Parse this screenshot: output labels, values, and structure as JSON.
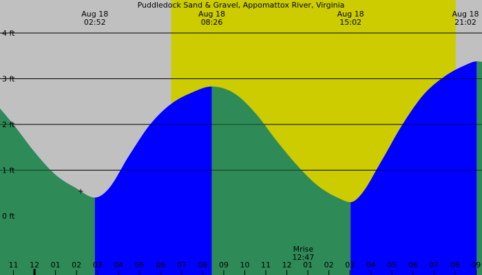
{
  "chart_data": {
    "type": "area",
    "title": "Puddledock Sand & Gravel, Appomattox River, Virginia",
    "y_unit": "ft",
    "ylim": [
      -1.0,
      4.5
    ],
    "xlim": [
      -1.64,
      21.28
    ],
    "y_ticks": [
      {
        "value": 4,
        "label": "4 ft"
      },
      {
        "value": 3,
        "label": "3 ft"
      },
      {
        "value": 2,
        "label": "2 ft"
      },
      {
        "value": 1,
        "label": "1 ft"
      },
      {
        "value": 0,
        "label": "0 ft"
      }
    ],
    "x_ticks": [
      {
        "hour": -1,
        "label": "11"
      },
      {
        "hour": 0,
        "label": "12"
      },
      {
        "hour": 1,
        "label": "01"
      },
      {
        "hour": 2,
        "label": "02"
      },
      {
        "hour": 3,
        "label": "03"
      },
      {
        "hour": 4,
        "label": "04"
      },
      {
        "hour": 5,
        "label": "05"
      },
      {
        "hour": 6,
        "label": "06"
      },
      {
        "hour": 7,
        "label": "07"
      },
      {
        "hour": 8,
        "label": "08"
      },
      {
        "hour": 9,
        "label": "09"
      },
      {
        "hour": 10,
        "label": "10"
      },
      {
        "hour": 11,
        "label": "11"
      },
      {
        "hour": 12,
        "label": "12"
      },
      {
        "hour": 13,
        "label": "01"
      },
      {
        "hour": 14,
        "label": "02"
      },
      {
        "hour": 15,
        "label": "03"
      },
      {
        "hour": 16,
        "label": "04"
      },
      {
        "hour": 17,
        "label": "05"
      },
      {
        "hour": 18,
        "label": "06"
      },
      {
        "hour": 19,
        "label": "07"
      },
      {
        "hour": 20,
        "label": "08"
      },
      {
        "hour": 21,
        "label": "09"
      }
    ],
    "tide_events": [
      {
        "date": "Aug 18",
        "time": "02:52",
        "hour": 2.87,
        "height": 0.4,
        "kind": "low"
      },
      {
        "date": "Aug 18",
        "time": "08:26",
        "hour": 8.43,
        "height": 2.83,
        "kind": "high"
      },
      {
        "date": "Aug 18",
        "time": "15:02",
        "hour": 15.03,
        "height": 0.3,
        "kind": "low"
      },
      {
        "date": "Aug 18",
        "time": "21:02",
        "hour": 21.03,
        "height": 3.38,
        "kind": "high"
      }
    ],
    "curve": {
      "x": [
        -1.64,
        -1.0,
        0.0,
        1.0,
        2.0,
        2.87,
        3.5,
        4.5,
        5.5,
        6.5,
        7.5,
        8.43,
        9.5,
        10.5,
        11.5,
        12.5,
        13.5,
        14.5,
        15.03,
        15.5,
        16.5,
        17.5,
        18.5,
        19.5,
        20.5,
        21.03,
        21.28
      ],
      "y": [
        2.35,
        2.0,
        1.4,
        0.9,
        0.6,
        0.4,
        0.58,
        1.32,
        2.0,
        2.45,
        2.7,
        2.83,
        2.68,
        2.25,
        1.65,
        1.1,
        0.65,
        0.38,
        0.3,
        0.45,
        1.2,
        2.0,
        2.65,
        3.05,
        3.3,
        3.38,
        3.37
      ]
    },
    "shading": {
      "daylight": {
        "start_hour": 6.5,
        "end_hour": 20.03
      },
      "falling_color": "#2e8b57",
      "rising_color": "#0000ff",
      "daylight_color": "#cccc00",
      "night_color": "#c0c0c0"
    },
    "annotations": [
      {
        "label": "Mrise",
        "time": "12:47",
        "hour": 12.78
      }
    ],
    "marker": {
      "hour": 2.2,
      "height": 0.55,
      "symbol": "+"
    }
  }
}
